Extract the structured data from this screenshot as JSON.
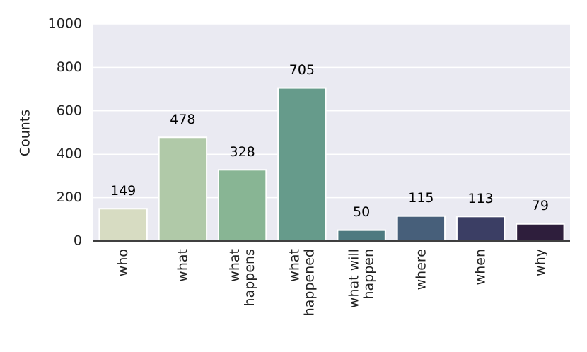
{
  "chart_data": {
    "type": "bar",
    "y_label": "Counts",
    "categories": [
      "who",
      "what",
      "what\nhappens",
      "what\nhappened",
      "what will\nhappen",
      "where",
      "when",
      "why"
    ],
    "values": [
      149,
      478,
      328,
      705,
      50,
      115,
      113,
      79
    ],
    "colors": [
      "#d7dcc2",
      "#b0c9a8",
      "#88b594",
      "#669b8b",
      "#4e7a80",
      "#475f7a",
      "#3b3e64",
      "#2e1e3c"
    ],
    "ylim": [
      0,
      1000
    ],
    "yticks": [
      0,
      200,
      400,
      600,
      800,
      1000
    ],
    "grid": true
  }
}
